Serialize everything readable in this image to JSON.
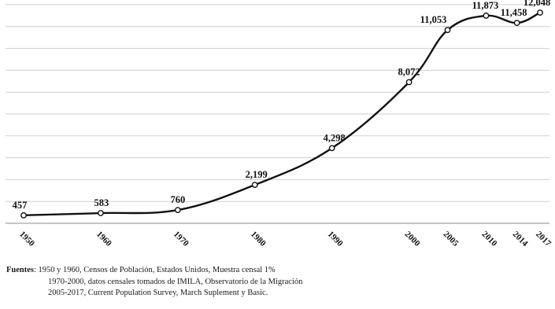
{
  "chart_data": {
    "type": "line",
    "x": [
      "1950",
      "1960",
      "1970",
      "1980",
      "1990",
      "2000",
      "2005",
      "2010",
      "2014",
      "2017"
    ],
    "series": [
      {
        "values": [
          457,
          583,
          760,
          2199,
          4298,
          8072,
          11053,
          11873,
          11458,
          12048
        ],
        "labels": [
          "457",
          "583",
          "760",
          "2,199",
          "4,298",
          "8,072",
          "11,053",
          "11,873",
          "11,458",
          "12,048"
        ]
      }
    ],
    "ylim": [
      0,
      12500
    ],
    "grid": true,
    "line_color": "#111111",
    "grid_color": "#cfcfcf"
  },
  "sources": {
    "lead": "Fuentes",
    "line1": ": 1950 y 1960,  Censos de Población, Estados Unidos, Muestra censal 1%",
    "line2": "1970-2000,  datos censales tomados de IMILA,  Observatorio de la Migración",
    "line3": "2005-2017,  Current Population Survey, March Suplement y Basic."
  }
}
